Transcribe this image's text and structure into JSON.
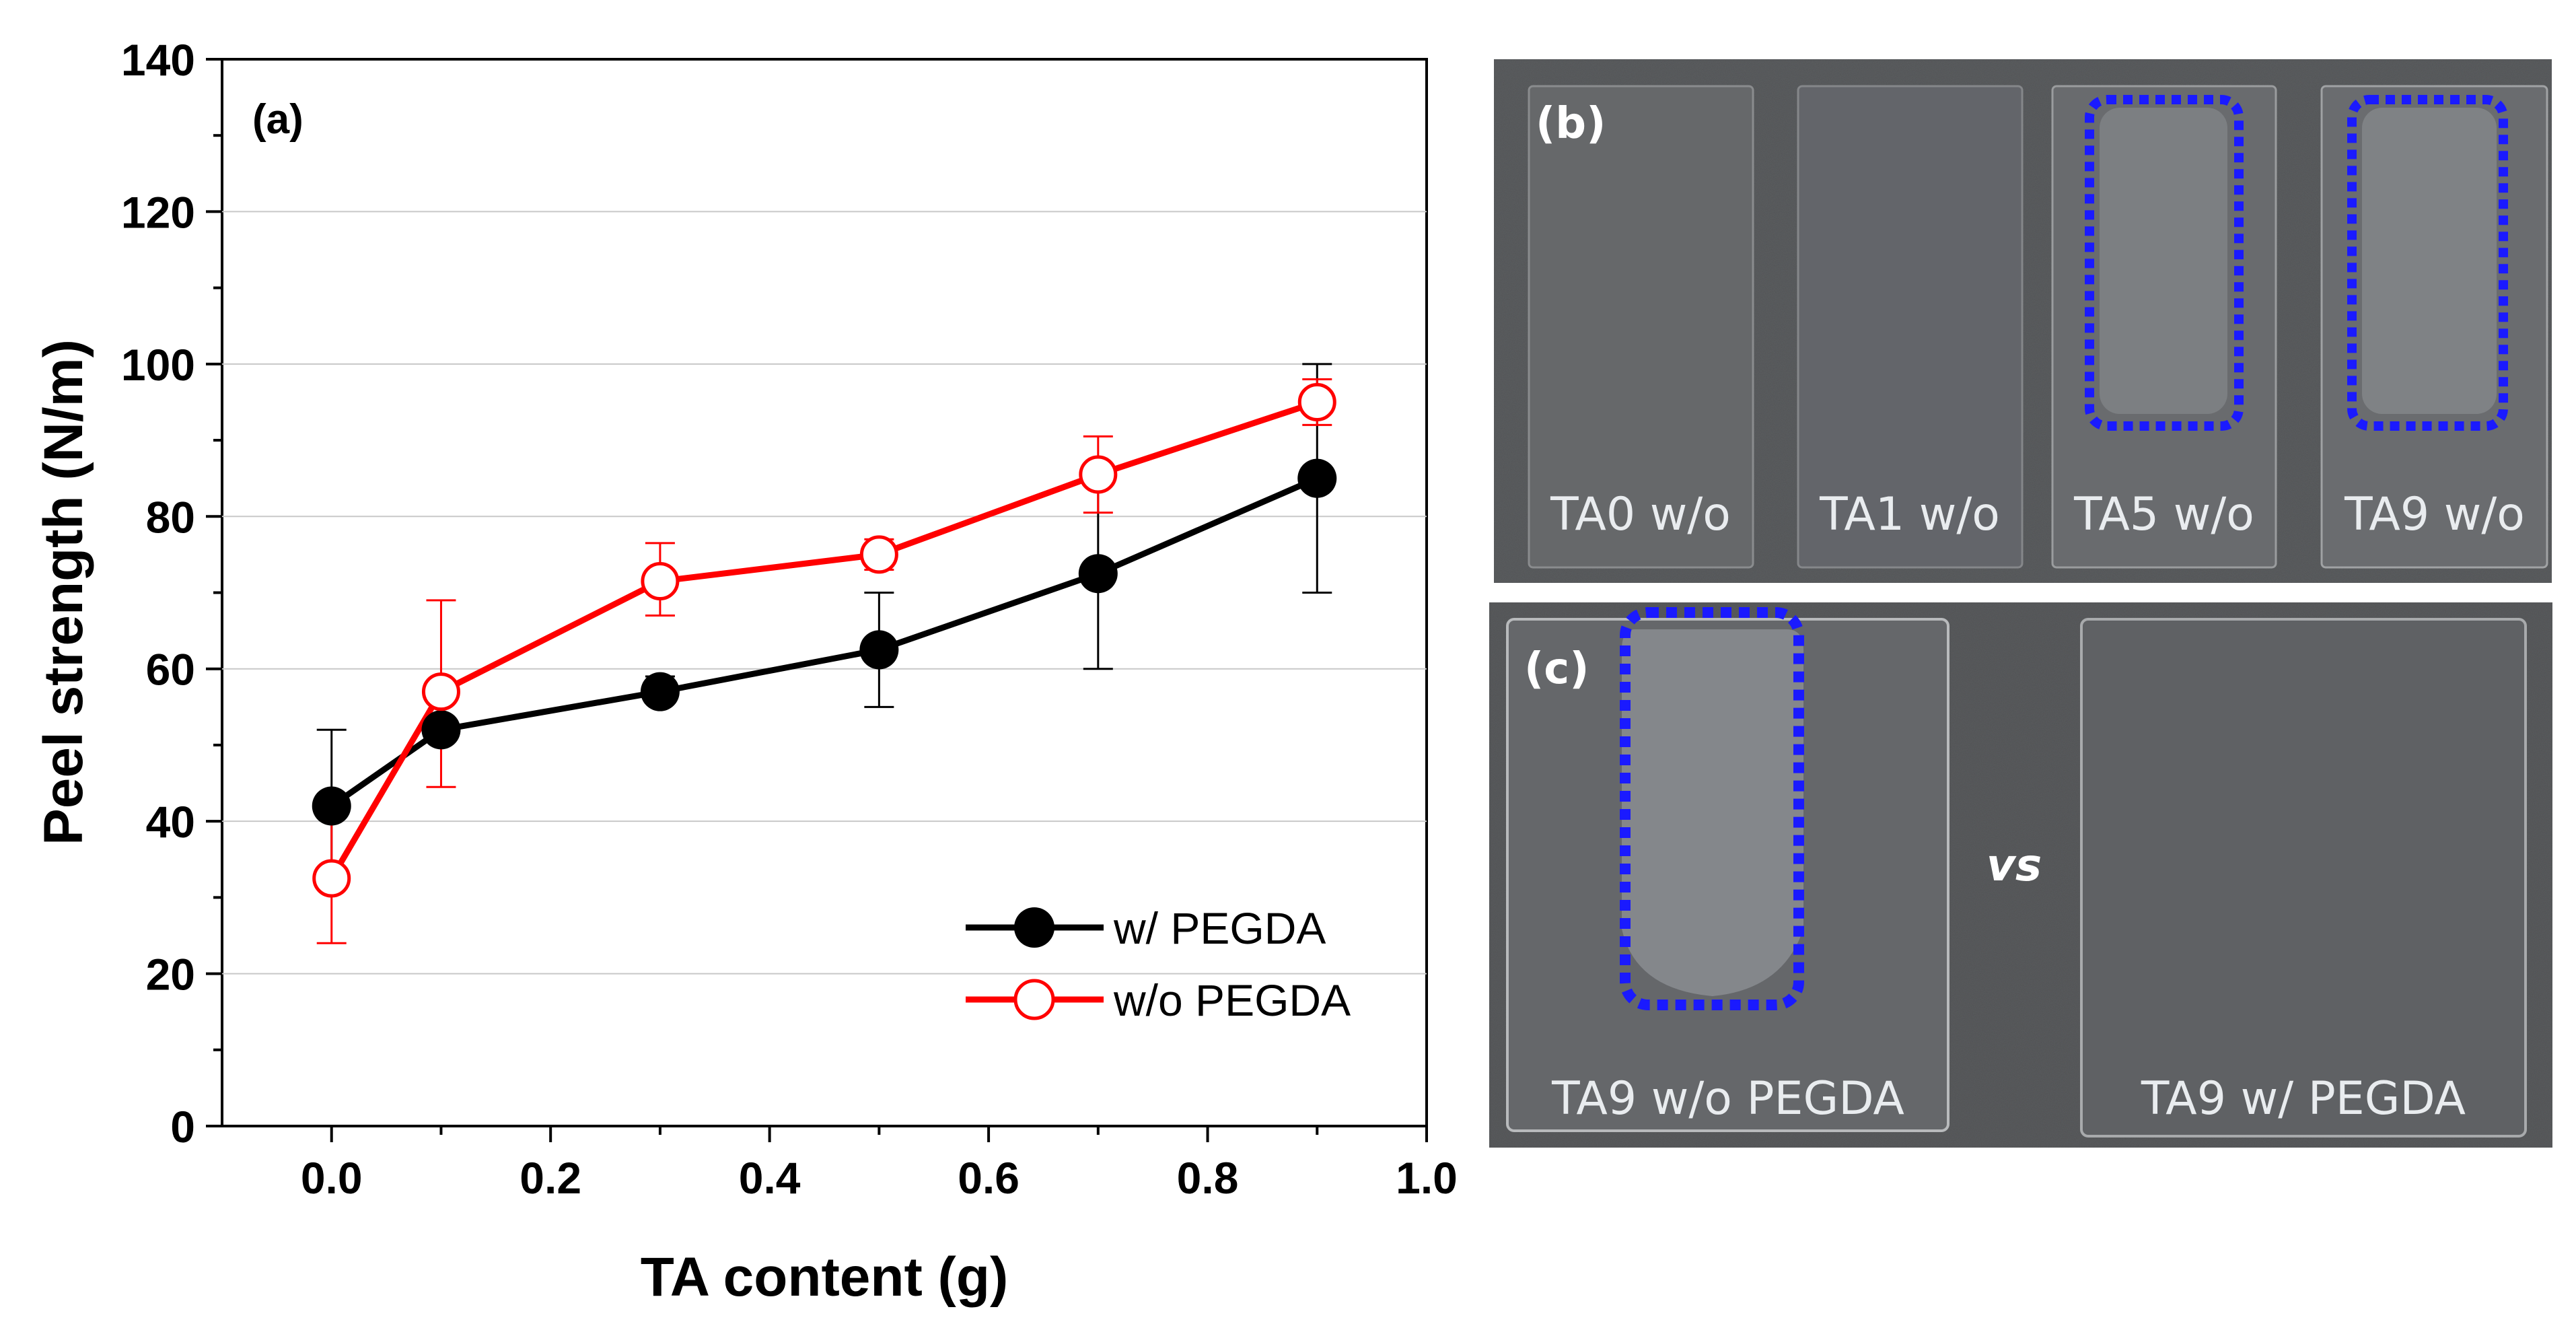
{
  "colors": {
    "series_with": "#000000",
    "series_without": "#ff0000",
    "highlight_box": "#1a1aff",
    "photo_bg": "#5a5c5e"
  },
  "chart_data": {
    "type": "line",
    "panel_label": "(a)",
    "title": "",
    "xlabel": "TA content (g)",
    "ylabel": "Peel strength (N/m)",
    "xlim": [
      -0.1,
      1.0
    ],
    "ylim": [
      0,
      140
    ],
    "x_ticks": [
      "0.0",
      "0.2",
      "0.4",
      "0.6",
      "0.8",
      "1.0"
    ],
    "y_ticks": [
      "0",
      "20",
      "40",
      "60",
      "80",
      "100",
      "120",
      "140"
    ],
    "grid": "horizontal",
    "legend_position": "bottom-right",
    "series": [
      {
        "name": "w/ PEGDA",
        "marker": "filled-circle",
        "color": "#000000",
        "x": [
          0.0,
          0.1,
          0.3,
          0.5,
          0.7,
          0.9
        ],
        "y": [
          42,
          52,
          57,
          62.5,
          72.5,
          85
        ],
        "err_upper": [
          52,
          55.5,
          59,
          70,
          85,
          100
        ],
        "err_lower": [
          32,
          51,
          56,
          55,
          60,
          70
        ]
      },
      {
        "name": "w/o PEGDA",
        "marker": "open-circle",
        "color": "#ff0000",
        "x": [
          0.0,
          0.1,
          0.3,
          0.5,
          0.7,
          0.9
        ],
        "y": [
          32.5,
          57,
          71.5,
          75,
          85.5,
          95
        ],
        "err_upper": [
          41,
          69,
          76.5,
          77,
          90.5,
          98
        ],
        "err_lower": [
          24,
          44.5,
          67,
          73,
          80.5,
          92
        ]
      }
    ]
  },
  "photos": {
    "panel_b": {
      "label": "(b)",
      "slides": [
        "TA0 w/o",
        "TA1 w/o",
        "TA5 w/o",
        "TA9 w/o"
      ]
    },
    "panel_c": {
      "label": "(c)",
      "vs_label": "vs",
      "left_slide": "TA9 w/o PEGDA",
      "right_slide": "TA9 w/ PEGDA"
    }
  }
}
